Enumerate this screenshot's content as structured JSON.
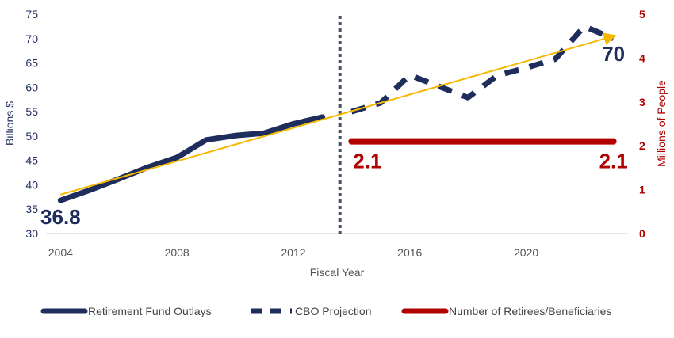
{
  "chart_data": {
    "type": "line",
    "xlabel": "Fiscal Year",
    "ylabel": "Billions $",
    "y2label": "Millions of People",
    "xlim": [
      2003.5,
      2023.5
    ],
    "ylim": [
      30,
      75
    ],
    "y2lim": [
      0,
      5
    ],
    "x_ticks": [
      2004,
      2008,
      2012,
      2016,
      2020
    ],
    "y_ticks": [
      30,
      35,
      40,
      45,
      50,
      55,
      60,
      65,
      70,
      75
    ],
    "y2_ticks": [
      0,
      1,
      2,
      3,
      4,
      5
    ],
    "grid": false,
    "legend_position": "bottom",
    "divider_x": 2013.6,
    "series": [
      {
        "name": "Retirement Fund Outlays",
        "axis": "left",
        "color": "#1f2d5c",
        "style": "solid",
        "x": [
          2004,
          2005,
          2006,
          2007,
          2008,
          2009,
          2010,
          2011,
          2012,
          2013
        ],
        "values": [
          36.8,
          38.9,
          41.2,
          43.6,
          45.6,
          49.2,
          50.1,
          50.6,
          52.5,
          53.9
        ]
      },
      {
        "name": "CBO Projection",
        "axis": "left",
        "color": "#1f2d5c",
        "style": "dashed",
        "x": [
          2014,
          2015,
          2016,
          2017,
          2018,
          2019,
          2020,
          2021,
          2022,
          2023
        ],
        "values": [
          55.0,
          56.8,
          62.5,
          60.2,
          57.9,
          62.4,
          64.0,
          65.8,
          72.5,
          70.0
        ]
      },
      {
        "name": "Number of Retirees/Beneficiaries",
        "axis": "right",
        "color": "#b00000",
        "style": "solid",
        "x": [
          2014,
          2023
        ],
        "values": [
          2.1,
          2.1
        ]
      }
    ],
    "trendline": {
      "color": "#f5b800",
      "axis": "left",
      "x": [
        2004,
        2023
      ],
      "values": [
        38.0,
        70.5
      ]
    },
    "annotations": [
      {
        "text": "36.8",
        "color": "#1f2d5c",
        "x": 2004,
        "axis": "left",
        "y": 36.8
      },
      {
        "text": "70",
        "color": "#1f2d5c",
        "x": 2023,
        "axis": "left",
        "y": 70
      },
      {
        "text": "2.1",
        "color": "#b00000",
        "x": 2014,
        "axis": "right",
        "y": 2.1
      },
      {
        "text": "2.1",
        "color": "#b00000",
        "x": 2023,
        "axis": "right",
        "y": 2.1
      }
    ]
  }
}
